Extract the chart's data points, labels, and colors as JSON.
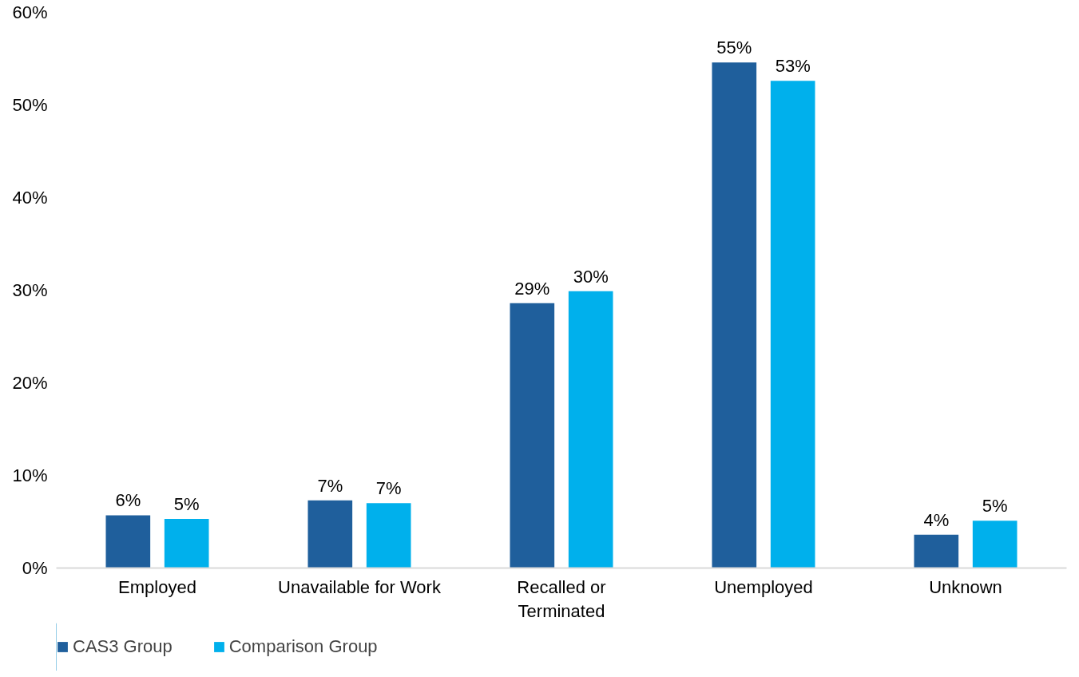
{
  "chart_data": {
    "type": "bar",
    "categories": [
      "Employed",
      "Unavailable for Work",
      "Recalled or Terminated",
      "Unemployed",
      "Unknown"
    ],
    "series": [
      {
        "name": "CAS3 Group",
        "color": "#1f5f9c",
        "values": [
          5.7,
          7.3,
          28.6,
          54.6,
          3.6
        ],
        "value_labels": [
          "6%",
          "7%",
          "29%",
          "55%",
          "4%"
        ]
      },
      {
        "name": "Comparison Group",
        "color": "#00b0ec",
        "values": [
          5.3,
          7.0,
          29.9,
          52.6,
          5.1
        ],
        "value_labels": [
          "5%",
          "7%",
          "30%",
          "53%",
          "5%"
        ]
      }
    ],
    "ylim": [
      0,
      60
    ],
    "yticks": [
      {
        "value": 0,
        "label": "0%"
      },
      {
        "value": 10,
        "label": "10%"
      },
      {
        "value": 20,
        "label": "20%"
      },
      {
        "value": 30,
        "label": "30%"
      },
      {
        "value": 40,
        "label": "40%"
      },
      {
        "value": 50,
        "label": "50%"
      },
      {
        "value": 60,
        "label": "60%"
      }
    ],
    "grid": false,
    "legend": "bottom left"
  }
}
